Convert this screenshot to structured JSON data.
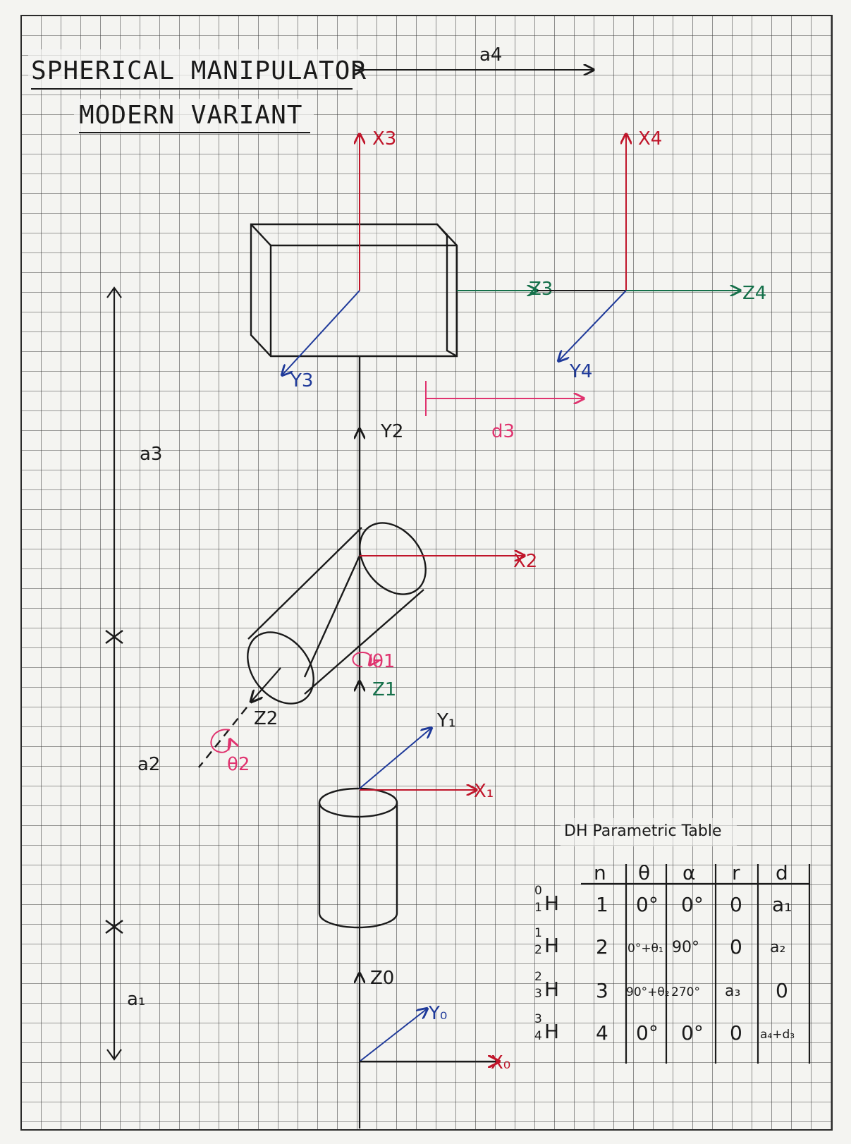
{
  "title": {
    "line1": "SPHERICAL MANIPULATOR",
    "line2": "MODERN VARIANT"
  },
  "colors": {
    "ink": "#1a1a1a",
    "x_axis": "#c0152a",
    "y_axis": "#1f3a9a",
    "z_axis": "#15704a",
    "joint_param": "#e0336f",
    "grid": "#3b3b3b",
    "paper": "#f4f4f1"
  },
  "dimensions": {
    "a1": "a₁",
    "a2": "a2",
    "a3": "a3",
    "a4": "a4",
    "d3": "d3"
  },
  "axes": {
    "x0": "X₀",
    "y0": "Y₀",
    "z0": "Z0",
    "x1": "X₁",
    "y1": "Y₁",
    "z1": "Z1",
    "x2": "X2",
    "y2": "Y2",
    "z2": "Z2",
    "x3": "X3",
    "y3": "Y3",
    "z3": "Z3",
    "x4": "X4",
    "y4": "Y4",
    "z4": "Z4"
  },
  "joints": {
    "theta1": "θ1",
    "theta2": "θ2"
  },
  "dh_table": {
    "title": "DH Parametric Table",
    "headers": [
      "n",
      "θ",
      "α",
      "r",
      "d"
    ],
    "rows": [
      {
        "transform_top": "0",
        "transform_bottom": "1",
        "n": "1",
        "theta": "0°",
        "alpha": "0°",
        "r": "0",
        "d": "a₁"
      },
      {
        "transform_top": "1",
        "transform_bottom": "2",
        "n": "2",
        "theta": "0°+θ₁",
        "alpha": "90°",
        "r": "0",
        "d": "a₂"
      },
      {
        "transform_top": "2",
        "transform_bottom": "3",
        "n": "3",
        "theta": "90°+θ₂",
        "alpha": "270°",
        "r": "a₃",
        "d": "0"
      },
      {
        "transform_top": "3",
        "transform_bottom": "4",
        "n": "4",
        "theta": "0°",
        "alpha": "0°",
        "r": "0",
        "d": "a₄+d₃"
      }
    ]
  }
}
